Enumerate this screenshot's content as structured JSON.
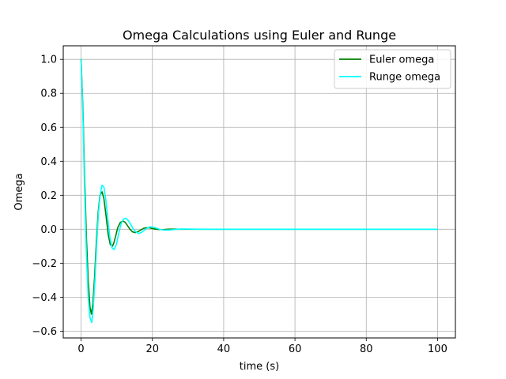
{
  "chart_data": {
    "type": "line",
    "title": "Omega Calculations using Euler and Runge",
    "xlabel": "time (s)",
    "ylabel": "Omega",
    "xlim": [
      -5,
      105
    ],
    "ylim": [
      -0.64,
      1.08
    ],
    "xticks": [
      0,
      20,
      40,
      60,
      80,
      100
    ],
    "yticks": [
      -0.6,
      -0.4,
      -0.2,
      0.0,
      0.2,
      0.4,
      0.6,
      0.8,
      1.0
    ],
    "ytick_labels": [
      "−0.6",
      "−0.4",
      "−0.2",
      "0.0",
      "0.2",
      "0.4",
      "0.6",
      "0.8",
      "1.0"
    ],
    "grid": true,
    "legend_position": "top-right",
    "series": [
      {
        "name": "Euler omega",
        "color": "#008000",
        "x": [
          0,
          0.5,
          1.0,
          1.5,
          2.0,
          2.5,
          2.9,
          3.3,
          3.8,
          4.3,
          4.8,
          5.3,
          5.9,
          6.4,
          7.0,
          7.6,
          8.2,
          8.8,
          9.2,
          9.7,
          10.3,
          11.0,
          11.8,
          12.4,
          13.0,
          13.7,
          14.4,
          15.2,
          15.9,
          16.7,
          17.5,
          18.3,
          19.1,
          20.0,
          21.0,
          22.0,
          23.0,
          24.5,
          26.0,
          28.0,
          30.0,
          35.0,
          40.0,
          50.0,
          60.0,
          70.0,
          80.0,
          90.0,
          100.0
        ],
        "values": [
          1.0,
          0.72,
          0.3,
          -0.05,
          -0.3,
          -0.46,
          -0.5,
          -0.44,
          -0.28,
          -0.07,
          0.1,
          0.2,
          0.22,
          0.18,
          0.08,
          -0.03,
          -0.09,
          -0.1,
          -0.08,
          -0.04,
          0.01,
          0.04,
          0.048,
          0.04,
          0.022,
          0.0,
          -0.015,
          -0.02,
          -0.015,
          -0.005,
          0.005,
          0.009,
          0.009,
          0.004,
          0.0,
          -0.002,
          -0.002,
          0.0,
          0.0005,
          0.0,
          0.0,
          0.0,
          0.0,
          0.0,
          0.0,
          0.0,
          0.0,
          0.0,
          0.0
        ]
      },
      {
        "name": "Runge omega",
        "color": "#00ffff",
        "x": [
          0,
          0.5,
          1.0,
          1.5,
          2.0,
          2.5,
          3.0,
          3.4,
          3.9,
          4.4,
          4.9,
          5.4,
          5.9,
          6.4,
          6.9,
          7.5,
          8.1,
          8.7,
          9.3,
          9.9,
          10.5,
          11.2,
          11.9,
          12.6,
          13.3,
          14.0,
          14.7,
          15.5,
          16.2,
          17.0,
          17.8,
          18.6,
          19.4,
          20.3,
          21.3,
          22.3,
          23.5,
          25.0,
          26.5,
          28.0,
          30.0,
          35.0,
          40.0,
          50.0,
          60.0,
          70.0,
          80.0,
          90.0,
          100.0
        ],
        "values": [
          1.0,
          0.68,
          0.22,
          -0.15,
          -0.4,
          -0.52,
          -0.55,
          -0.47,
          -0.3,
          -0.08,
          0.1,
          0.21,
          0.26,
          0.25,
          0.18,
          0.06,
          -0.05,
          -0.11,
          -0.12,
          -0.09,
          -0.03,
          0.03,
          0.06,
          0.065,
          0.05,
          0.025,
          0.0,
          -0.018,
          -0.025,
          -0.018,
          -0.005,
          0.008,
          0.014,
          0.012,
          0.005,
          -0.002,
          -0.005,
          -0.004,
          -0.001,
          0.001,
          0.001,
          0.0,
          0.0,
          0.0,
          0.0,
          0.0,
          0.0,
          0.0,
          0.0
        ]
      }
    ]
  }
}
